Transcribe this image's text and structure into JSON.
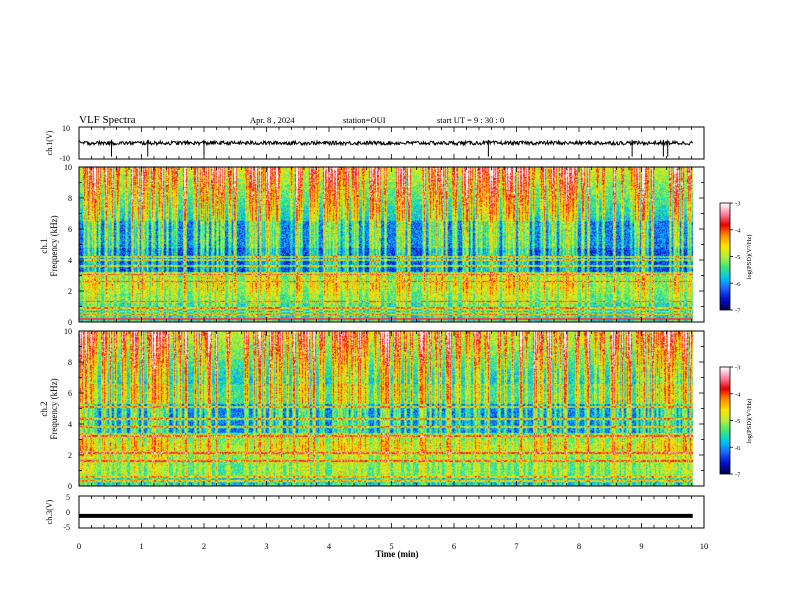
{
  "header": {
    "title": "VLF Spectra",
    "date": "Apr. 8 , 2024",
    "station": "station=OUI",
    "start": "start UT =  9 : 30 : 0"
  },
  "colors": {
    "background": "#ffffff",
    "axes": "#000000",
    "colormap": [
      "#000050",
      "#0010c8",
      "#1e64ff",
      "#00c8f0",
      "#3ce878",
      "#b4f03c",
      "#ffe600",
      "#ff8c00",
      "#e60000",
      "#ff80a0",
      "#ffffff"
    ]
  },
  "chart_data": [
    {
      "type": "line",
      "name": "ch.1 waveform",
      "ylabel": "ch.1(V)",
      "ylim": [
        -10,
        10
      ],
      "yticks": [
        "10",
        "-10"
      ],
      "xlim": [
        0,
        10
      ],
      "baseline": 0,
      "spikes_min": [
        0.52,
        1.1,
        2.0,
        6.55,
        8.85,
        9.35,
        9.42
      ],
      "grid": false
    },
    {
      "type": "heatmap",
      "name": "ch.1 spectrogram",
      "ylabel": "ch.1 Frequency (kHz)",
      "ylim": [
        0,
        10
      ],
      "yticks": [
        "0",
        "2",
        "4",
        "6",
        "8",
        "10"
      ],
      "xlim": [
        0,
        10
      ],
      "color_scale": {
        "label": "log(PSD)(V²/Hz)",
        "range": [
          -7,
          -3
        ],
        "ticks": [
          "-3",
          "-4",
          "-5",
          "-6",
          "-7"
        ]
      },
      "grid": false
    },
    {
      "type": "heatmap",
      "name": "ch.2 spectrogram",
      "ylabel": "ch.2 Frequency (kHz)",
      "ylim": [
        0,
        10
      ],
      "yticks": [
        "0",
        "2",
        "4",
        "6",
        "8",
        "10"
      ],
      "xlim": [
        0,
        10
      ],
      "color_scale": {
        "label": "log(PSD)(V²/Hz)",
        "range": [
          -7,
          -3
        ],
        "ticks": [
          "-3",
          "-4",
          "-5",
          "-6",
          "-7"
        ]
      },
      "grid": false
    },
    {
      "type": "line",
      "name": "ch.3 waveform",
      "ylabel": "ch.3(V)",
      "ylim": [
        -5,
        5
      ],
      "yticks": [
        "5",
        "0",
        "-5"
      ],
      "xlim": [
        0,
        10
      ],
      "baseline": -1.2,
      "grid": false
    }
  ],
  "xaxis": {
    "label": "Time  (min)",
    "range": [
      0,
      10
    ],
    "ticks": [
      "0",
      "1",
      "2",
      "3",
      "4",
      "5",
      "6",
      "7",
      "8",
      "9",
      "10"
    ]
  }
}
